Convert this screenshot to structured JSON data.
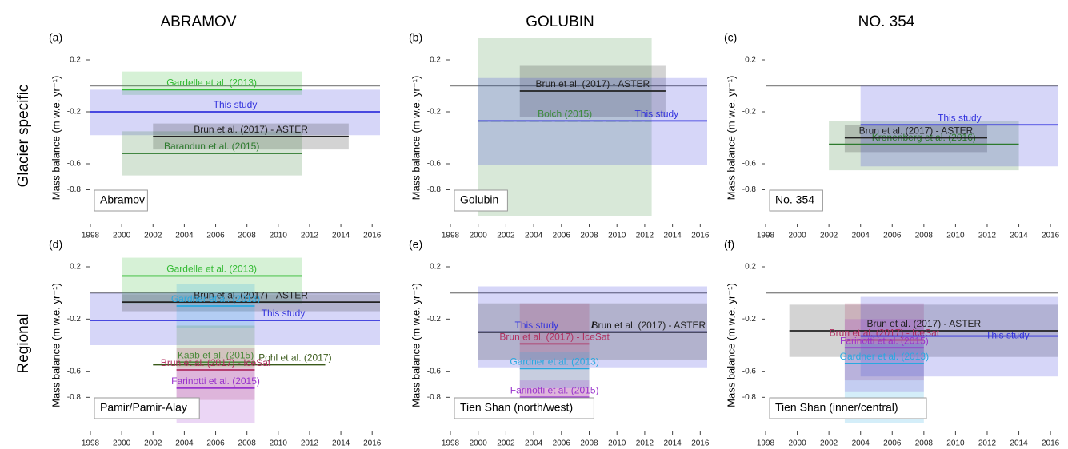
{
  "column_titles": [
    "ABRAMOV",
    "GOLUBIN",
    "NO. 354"
  ],
  "row_titles": [
    "Glacier specific",
    "Regional"
  ],
  "chart_data": [
    {
      "type": "interval",
      "panel": "(a)",
      "region": "Abramov",
      "ylabel": "Mass balance (m w.e. yr⁻¹)",
      "xlim": [
        1998,
        2016.5
      ],
      "xticks": [
        1998,
        2000,
        2002,
        2004,
        2006,
        2008,
        2010,
        2012,
        2014,
        2016
      ],
      "ylim": [
        -1.0,
        0.2
      ],
      "yticks": [
        0.2,
        -0.2,
        -0.6,
        -0.8
      ],
      "zero_line": true,
      "series": [
        {
          "name": "Gardelle et al. (2013)",
          "color": "#33bb33",
          "x": [
            2000,
            2011.5
          ],
          "value": -0.03,
          "range": [
            -0.07,
            0.11
          ]
        },
        {
          "name": "This study",
          "color": "#3333dd",
          "x": [
            1998,
            2016.5
          ],
          "value": -0.2,
          "range": [
            -0.38,
            -0.03
          ]
        },
        {
          "name": "Brun et al. (2017) - ASTER",
          "color": "#222222",
          "x": [
            2002,
            2014.5
          ],
          "value": -0.39,
          "range": [
            -0.49,
            -0.29
          ]
        },
        {
          "name": "Barandun et al. (2015)",
          "color": "#2d7a2d",
          "x": [
            2000,
            2011.5
          ],
          "value": -0.52,
          "range": [
            -0.69,
            -0.35
          ]
        }
      ]
    },
    {
      "type": "interval",
      "panel": "(b)",
      "region": "Golubin",
      "ylabel": "Mass balance (m w.e. yr⁻¹)",
      "xlim": [
        1998,
        2016.5
      ],
      "xticks": [
        1998,
        2000,
        2002,
        2004,
        2006,
        2008,
        2010,
        2012,
        2014,
        2016
      ],
      "ylim": [
        -1.0,
        0.2
      ],
      "yticks": [
        0.2,
        -0.2,
        -0.6,
        -0.8
      ],
      "zero_line": true,
      "series": [
        {
          "name": "Bolch (2015)",
          "color": "#3a8a3a",
          "x": [
            2000,
            2012.5
          ],
          "value": -0.27,
          "range": [
            -1.0,
            0.37
          ]
        },
        {
          "name": "Brun et al. (2017) - ASTER",
          "color": "#222222",
          "x": [
            2003,
            2013.5
          ],
          "value": -0.04,
          "range": [
            -0.24,
            0.16
          ]
        },
        {
          "name": "This study",
          "color": "#3333dd",
          "x": [
            2000,
            2016.5
          ],
          "value": -0.27,
          "range": [
            -0.61,
            0.06
          ]
        }
      ]
    },
    {
      "type": "interval",
      "panel": "(c)",
      "region": "No. 354",
      "ylabel": "Mass balance (m w.e. yr⁻¹)",
      "xlim": [
        1998,
        2016.5
      ],
      "xticks": [
        1998,
        2000,
        2002,
        2004,
        2006,
        2008,
        2010,
        2012,
        2014,
        2016
      ],
      "ylim": [
        -1.0,
        0.2
      ],
      "yticks": [
        0.2,
        -0.2,
        -0.6,
        -0.8
      ],
      "zero_line": true,
      "series": [
        {
          "name": "Kronenberg et al. (2016)",
          "color": "#2d7a2d",
          "x": [
            2002,
            2014
          ],
          "value": -0.45,
          "range": [
            -0.65,
            -0.27
          ]
        },
        {
          "name": "Brun et al. (2017) - ASTER",
          "color": "#222222",
          "x": [
            2003,
            2012
          ],
          "value": -0.4,
          "range": [
            -0.51,
            -0.3
          ]
        },
        {
          "name": "This study",
          "color": "#3333dd",
          "x": [
            2004,
            2016.5
          ],
          "value": -0.3,
          "range": [
            -0.62,
            0
          ]
        }
      ]
    },
    {
      "type": "interval",
      "panel": "(d)",
      "region": "Pamir/Pamir-Alay",
      "ylabel": "Mass balance (m w.e. yr⁻¹)",
      "xlim": [
        1998,
        2016.5
      ],
      "xticks": [
        1998,
        2000,
        2002,
        2004,
        2006,
        2008,
        2010,
        2012,
        2014,
        2016
      ],
      "ylim": [
        -1.0,
        0.2
      ],
      "yticks": [
        0.2,
        -0.2,
        -0.6,
        -0.8
      ],
      "zero_line": true,
      "series": [
        {
          "name": "Gardelle et al. (2013)",
          "color": "#33bb33",
          "x": [
            2000,
            2011.5
          ],
          "value": 0.13,
          "range": [
            -0.08,
            0.27
          ]
        },
        {
          "name": "This study",
          "color": "#3333dd",
          "x": [
            1998,
            2016.5
          ],
          "value": -0.21,
          "range": [
            -0.4,
            0
          ]
        },
        {
          "name": "Brun et al. (2017) - ASTER",
          "color": "#222222",
          "x": [
            2000,
            2016.5
          ],
          "value": -0.07,
          "range": [
            -0.14,
            -0.01
          ]
        },
        {
          "name": "Gardner et al. (2013)",
          "color": "#29a9e0",
          "x": [
            2003.5,
            2008.5
          ],
          "value": -0.1,
          "range": [
            -0.27,
            0.07
          ]
        },
        {
          "name": "Kääb et al. (2015)",
          "color": "#4a8a3a",
          "x": [
            2003.5,
            2008.5
          ],
          "value": -0.53,
          "range": [
            -0.57,
            -0.25
          ]
        },
        {
          "name": "Pohl et al. (2017)",
          "color": "#3a5a1a",
          "x": [
            2002,
            2013
          ],
          "value": -0.55
        },
        {
          "name": "Brun et al. (2017) - IceSat",
          "color": "#b03060",
          "x": [
            2003.5,
            2008.5
          ],
          "value": -0.59,
          "range": [
            -0.82,
            -0.42
          ]
        },
        {
          "name": "Farinotti et al. (2015)",
          "color": "#9933cc",
          "x": [
            2003.5,
            2008.5
          ],
          "value": -0.73,
          "range": [
            -1.0,
            -0.58
          ]
        }
      ]
    },
    {
      "type": "interval",
      "panel": "(e)",
      "region": "Tien Shan (north/west)",
      "ylabel": "Mass balance (m w.e. yr⁻¹)",
      "xlim": [
        1998,
        2016.5
      ],
      "xticks": [
        1998,
        2000,
        2002,
        2004,
        2006,
        2008,
        2010,
        2012,
        2014,
        2016
      ],
      "ylim": [
        -1.0,
        0.2
      ],
      "yticks": [
        0.2,
        -0.2,
        -0.6,
        -0.8
      ],
      "zero_line": true,
      "label_joiner": "/",
      "series": [
        {
          "name": "This study",
          "color": "#3333dd",
          "x": [
            2000,
            2016.5
          ],
          "value": -0.3,
          "range": [
            -0.57,
            0.05
          ]
        },
        {
          "name": "Brun et al. (2017) - ASTER",
          "color": "#222222",
          "x": [
            2000,
            2016.5
          ],
          "value": -0.3,
          "range": [
            -0.51,
            -0.08
          ]
        },
        {
          "name": "Brun et al. (2017) - IceSat",
          "color": "#b03060",
          "x": [
            2003,
            2008
          ],
          "value": -0.39,
          "range": [
            -0.91,
            -0.08
          ]
        },
        {
          "name": "Gardner et al. (2013)",
          "color": "#29a9e0",
          "x": [
            2003,
            2008
          ],
          "value": -0.58,
          "range": [
            -0.73,
            -0.45
          ]
        },
        {
          "name": "Farinotti et al. (2015)",
          "color": "#9933cc",
          "x": [
            2003,
            2008
          ],
          "value": -0.8,
          "range": [
            -0.94,
            -0.67
          ]
        }
      ]
    },
    {
      "type": "interval",
      "panel": "(f)",
      "region": "Tien Shan (inner/central)",
      "ylabel": "Mass balance (m w.e. yr⁻¹)",
      "xlim": [
        1998,
        2016.5
      ],
      "xticks": [
        1998,
        2000,
        2002,
        2004,
        2006,
        2008,
        2010,
        2012,
        2014,
        2016
      ],
      "ylim": [
        -1.0,
        0.2
      ],
      "yticks": [
        0.2,
        -0.2,
        -0.6,
        -0.8
      ],
      "zero_line": true,
      "series": [
        {
          "name": "Brun et al. (2017) - ASTER",
          "color": "#222222",
          "x": [
            1999.5,
            2016.5
          ],
          "value": -0.29,
          "range": [
            -0.49,
            -0.09
          ]
        },
        {
          "name": "Brun et al. (2017) - IceSat",
          "color": "#b03060",
          "x": [
            2003,
            2008
          ],
          "value": -0.36,
          "range": [
            -0.67,
            -0.08
          ]
        },
        {
          "name": "This study",
          "color": "#3333dd",
          "x": [
            2004,
            2016.5
          ],
          "value": -0.33,
          "range": [
            -0.64,
            -0.03
          ]
        },
        {
          "name": "Farinotti et al. (2015)",
          "color": "#9933cc",
          "x": [
            2003,
            2008
          ],
          "value": -0.42,
          "range": [
            -0.76,
            -0.2
          ]
        },
        {
          "name": "Gardner et al. (2013)",
          "color": "#29a9e0",
          "x": [
            2003,
            2008
          ],
          "value": -0.54,
          "range": [
            -1.0,
            -0.39
          ]
        }
      ]
    }
  ]
}
